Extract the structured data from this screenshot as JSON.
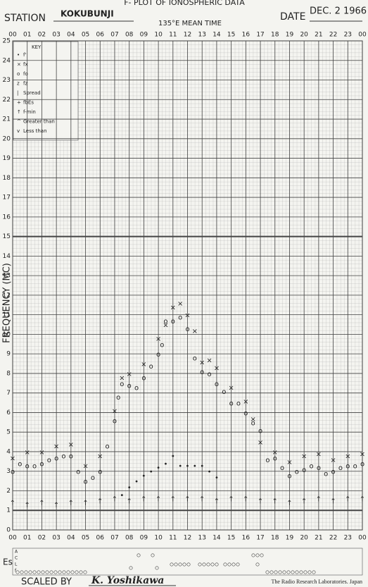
{
  "chart_data": {
    "type": "scatter",
    "title": "F- PLOT OF IONOSPHERIC DATA",
    "station_label": "STATION",
    "station": "KOKUBUNJI",
    "subtitle": "135°E MEAN TIME",
    "date_label": "DATE",
    "date": "DEC.  2 1966",
    "ylabel": "FREQUENCY  (MC)",
    "key_title": "KEY",
    "key_extra": [
      {
        "symbol": "z",
        "label": "fz"
      },
      {
        "symbol": "|",
        "label": "Spread"
      },
      {
        "symbol": "+",
        "label": "fbEs"
      },
      {
        "symbol": "^",
        "label": "Greater than"
      },
      {
        "symbol": "v",
        "label": "Less than"
      }
    ],
    "es_label": "Es",
    "es_rows": [
      "A",
      "C",
      "L",
      "f"
    ],
    "scaled_label": "SCALED  BY",
    "scaled_by": "K. Yoshikawa",
    "footer": "The Radio Research Laboratories.   Japan",
    "xlim": [
      0,
      24
    ],
    "ylim": [
      0,
      25
    ],
    "xticks": [
      {
        "value": 0,
        "label": "00"
      },
      {
        "value": 1,
        "label": "01"
      },
      {
        "value": 2,
        "label": "02"
      },
      {
        "value": 3,
        "label": "03"
      },
      {
        "value": 4,
        "label": "04"
      },
      {
        "value": 5,
        "label": "05"
      },
      {
        "value": 6,
        "label": "06"
      },
      {
        "value": 7,
        "label": "07"
      },
      {
        "value": 8,
        "label": "08"
      },
      {
        "value": 9,
        "label": "09"
      },
      10,
      11,
      12,
      13,
      14,
      15,
      16,
      17,
      18,
      19,
      20,
      21,
      22,
      23,
      {
        "value": 24,
        "label": "00"
      }
    ],
    "yticks": [
      0,
      1,
      2,
      3,
      4,
      5,
      6,
      7,
      8,
      9,
      10,
      11,
      12,
      13,
      14,
      15,
      16,
      17,
      18,
      19,
      20,
      21,
      22,
      23,
      24,
      25
    ],
    "color": "#333333",
    "grid": true,
    "series": [
      {
        "name": "f'",
        "marker": "•",
        "x": [
          7.5,
          8,
          8.5,
          9,
          9.5,
          10,
          10.5,
          11,
          11.5,
          12,
          12.5,
          13,
          13.5,
          14
        ],
        "values": [
          1.8,
          2.2,
          2.5,
          2.8,
          3.0,
          3.2,
          3.4,
          3.8,
          3.3,
          3.3,
          3.3,
          3.3,
          3.0,
          2.7
        ]
      },
      {
        "name": "fx",
        "marker": "×",
        "x": [
          0,
          1,
          2,
          3,
          4,
          5,
          6,
          7,
          7.5,
          8,
          9,
          10,
          10.5,
          11,
          11.5,
          12,
          12.5,
          13,
          13.5,
          14,
          15,
          16,
          16.5,
          17,
          18,
          19,
          20,
          21,
          22,
          23,
          24
        ],
        "values": [
          3.7,
          4.0,
          4.0,
          4.3,
          4.4,
          3.3,
          3.8,
          6.1,
          7.8,
          8.0,
          8.5,
          9.8,
          10.5,
          11.4,
          11.6,
          11.0,
          10.2,
          8.6,
          8.7,
          8.3,
          7.3,
          6.6,
          5.7,
          4.5,
          4.0,
          3.5,
          3.8,
          3.9,
          3.6,
          3.8,
          3.9
        ]
      },
      {
        "name": "fo",
        "marker": "o",
        "x": [
          0,
          0.5,
          1,
          1.5,
          2,
          2.5,
          3,
          3.5,
          4,
          4.5,
          5,
          5.5,
          6,
          6.5,
          7,
          7.25,
          7.5,
          8,
          8.5,
          9,
          9.5,
          10,
          10.25,
          10.5,
          11,
          11.5,
          12,
          12.5,
          13,
          13.5,
          14,
          14.5,
          15,
          15.5,
          16,
          16.5,
          17,
          17.5,
          18,
          18.5,
          19,
          19.5,
          20,
          20.5,
          21,
          21.5,
          22,
          22.5,
          23,
          23.5,
          24
        ],
        "values": [
          3.0,
          3.4,
          3.3,
          3.3,
          3.4,
          3.6,
          3.7,
          3.8,
          3.8,
          3.0,
          2.5,
          2.7,
          3.0,
          4.3,
          5.6,
          6.8,
          7.5,
          7.4,
          7.3,
          7.8,
          8.4,
          9.0,
          9.5,
          10.7,
          10.7,
          10.9,
          10.3,
          8.8,
          8.1,
          8.0,
          7.5,
          7.1,
          6.5,
          6.5,
          6.0,
          5.5,
          5.1,
          3.6,
          3.7,
          3.2,
          2.8,
          3.0,
          3.1,
          3.3,
          3.2,
          2.9,
          3.0,
          3.2,
          3.3,
          3.3,
          3.4
        ]
      },
      {
        "name": "f-min",
        "marker": "↑",
        "x": [
          0,
          1,
          2,
          3,
          4,
          5,
          6,
          7,
          8,
          9,
          10,
          11,
          12,
          13,
          14,
          15,
          16,
          17,
          18,
          19,
          20,
          21,
          22,
          23,
          24
        ],
        "values": [
          1.4,
          1.3,
          1.4,
          1.3,
          1.4,
          1.4,
          1.5,
          1.6,
          1.5,
          1.6,
          1.6,
          1.6,
          1.6,
          1.6,
          1.5,
          1.6,
          1.6,
          1.5,
          1.5,
          1.4,
          1.5,
          1.6,
          1.5,
          1.6,
          1.6
        ]
      }
    ]
  }
}
